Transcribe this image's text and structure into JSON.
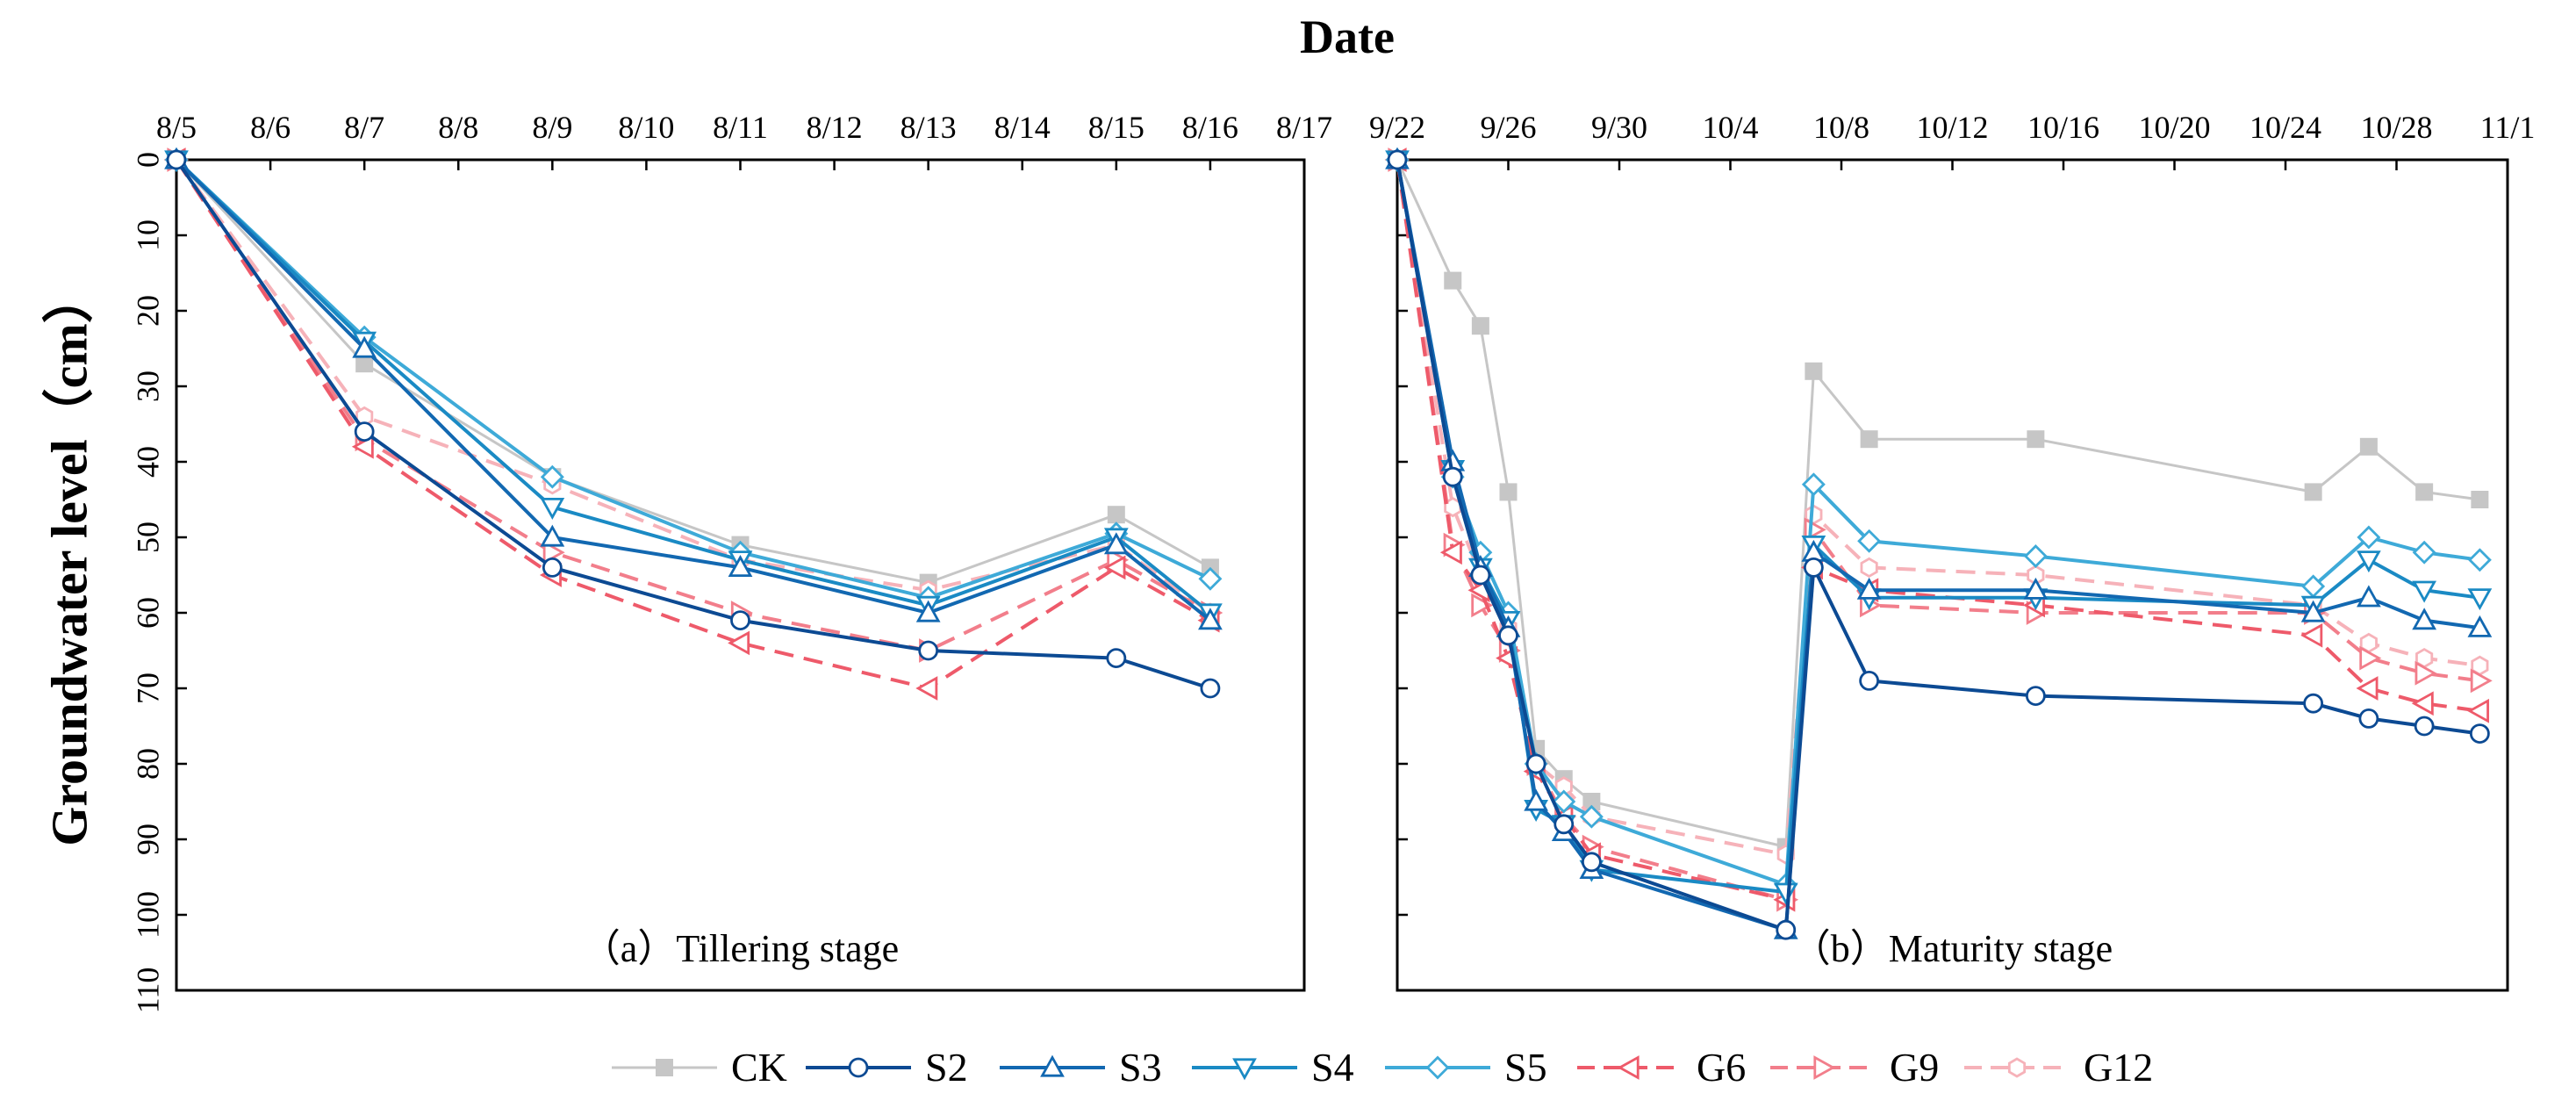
{
  "x_title": "Date",
  "y_title": "Groundwater level（cm）",
  "y_ticks": [
    0,
    10,
    20,
    30,
    40,
    50,
    60,
    70,
    80,
    90,
    100,
    110
  ],
  "colors": {
    "CK": "#c6c6c6",
    "S2": "#0c4a93",
    "S3": "#1268b1",
    "S4": "#1a8ac4",
    "S5": "#3eaad8",
    "G6": "#ee5a6a",
    "G9": "#f27e8b",
    "G12": "#f6b2b9"
  },
  "legend": [
    {
      "key": "CK",
      "label": "CK",
      "marker": "square",
      "dash": false
    },
    {
      "key": "S2",
      "label": "S2",
      "marker": "circle",
      "dash": false
    },
    {
      "key": "S3",
      "label": "S3",
      "marker": "triangle-up",
      "dash": false
    },
    {
      "key": "S4",
      "label": "S4",
      "marker": "triangle-down",
      "dash": false
    },
    {
      "key": "S5",
      "label": "S5",
      "marker": "diamond",
      "dash": false
    },
    {
      "key": "G6",
      "label": "G6",
      "marker": "triangle-left",
      "dash": true
    },
    {
      "key": "G9",
      "label": "G9",
      "marker": "triangle-right",
      "dash": true
    },
    {
      "key": "G12",
      "label": "G12",
      "marker": "hexagon",
      "dash": true
    }
  ],
  "chart_data": [
    {
      "type": "line",
      "title": "（a）Tillering stage",
      "xlabel": "Date",
      "ylabel": "Groundwater level（cm）",
      "y_inverted": true,
      "ylim": [
        0,
        110
      ],
      "xlim": [
        0,
        12
      ],
      "x_tick_labels": [
        "8/5",
        "8/6",
        "8/7",
        "8/8",
        "8/9",
        "8/10",
        "8/11",
        "8/12",
        "8/13",
        "8/14",
        "8/15",
        "8/16",
        "8/17"
      ],
      "x_tick_positions": [
        0,
        1,
        2,
        3,
        4,
        5,
        6,
        7,
        8,
        9,
        10,
        11,
        12
      ],
      "x": [
        0,
        2,
        4,
        6,
        8,
        10,
        11
      ],
      "series": [
        {
          "name": "CK",
          "values": [
            0,
            27,
            42,
            51,
            56,
            47,
            54
          ]
        },
        {
          "name": "S2",
          "values": [
            0,
            36,
            54,
            61,
            65,
            66,
            70
          ]
        },
        {
          "name": "S3",
          "values": [
            0,
            25,
            50,
            54,
            60,
            51,
            61
          ]
        },
        {
          "name": "S4",
          "values": [
            0,
            24,
            46,
            53,
            59,
            50,
            60
          ]
        },
        {
          "name": "S5",
          "values": [
            0,
            23.5,
            42,
            52,
            58,
            49.5,
            55.5
          ]
        },
        {
          "name": "G6",
          "values": [
            0,
            38,
            55,
            64,
            70,
            54,
            61
          ]
        },
        {
          "name": "G9",
          "values": [
            0,
            37,
            52,
            60,
            65,
            53,
            60
          ]
        },
        {
          "name": "G12",
          "values": [
            0,
            34,
            43,
            53,
            57,
            51,
            60
          ]
        }
      ]
    },
    {
      "type": "line",
      "title": "（b）Maturity stage",
      "xlabel": "Date",
      "ylabel": "Groundwater level（cm）",
      "y_inverted": true,
      "ylim": [
        0,
        110
      ],
      "xlim": [
        0,
        40
      ],
      "x_tick_labels": [
        "9/22",
        "9/26",
        "9/30",
        "10/4",
        "10/8",
        "10/12",
        "10/16",
        "10/20",
        "10/24",
        "10/28",
        "11/1"
      ],
      "x_tick_positions": [
        0,
        4,
        8,
        12,
        16,
        20,
        24,
        28,
        32,
        36,
        40
      ],
      "x": [
        0,
        2,
        3,
        4,
        5,
        6,
        7,
        14,
        15,
        17,
        23,
        33,
        35,
        37,
        39
      ],
      "series": [
        {
          "name": "CK",
          "values": [
            0,
            16,
            22,
            44,
            78,
            82,
            85,
            91,
            28,
            37,
            37,
            44,
            38,
            44,
            45
          ]
        },
        {
          "name": "S2",
          "values": [
            0,
            42,
            55,
            63,
            80,
            88,
            93,
            102,
            54,
            69,
            71,
            72,
            74,
            75,
            76
          ]
        },
        {
          "name": "S3",
          "values": [
            0,
            40,
            54,
            62,
            85,
            89,
            94,
            102,
            52,
            57,
            57,
            60,
            58,
            61,
            62
          ]
        },
        {
          "name": "S4",
          "values": [
            0,
            41,
            54,
            61,
            86,
            88,
            94,
            97,
            51,
            58,
            58,
            59,
            53,
            57,
            58
          ]
        },
        {
          "name": "S5",
          "values": [
            0,
            42,
            52,
            60,
            80,
            85,
            87,
            96,
            43,
            50.5,
            52.5,
            56.5,
            50,
            52,
            53
          ]
        },
        {
          "name": "G6",
          "values": [
            0,
            52,
            57,
            66,
            81,
            87,
            92,
            98,
            54,
            57,
            59,
            63,
            70,
            72,
            73
          ]
        },
        {
          "name": "G9",
          "values": [
            0,
            51,
            59,
            65,
            80,
            87,
            91,
            98,
            49,
            59,
            60,
            60,
            66,
            68,
            69
          ]
        },
        {
          "name": "G12",
          "values": [
            0,
            46,
            55,
            62,
            80,
            83,
            87,
            92,
            47,
            54,
            55,
            59,
            64,
            66,
            67
          ]
        }
      ]
    }
  ]
}
